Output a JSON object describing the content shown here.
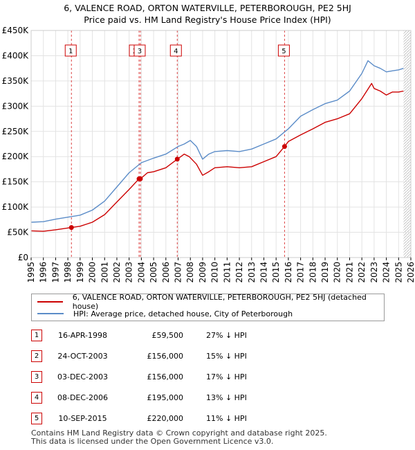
{
  "title_line1": "6, VALENCE ROAD, ORTON WATERVILLE, PETERBOROUGH, PE2 5HJ",
  "title_line2": "Price paid vs. HM Land Registry's House Price Index (HPI)",
  "chart_data": {
    "type": "line",
    "title": "6, VALENCE ROAD, ORTON WATERVILLE, PETERBOROUGH, PE2 5HJ — Price paid vs. HM Land Registry's House Price Index (HPI)",
    "xlim": [
      1995,
      2026
    ],
    "ylim": [
      0,
      450000
    ],
    "y_ticks": [
      0,
      50000,
      100000,
      150000,
      200000,
      250000,
      300000,
      350000,
      400000,
      450000
    ],
    "y_tick_labels": [
      "£0",
      "£50K",
      "£100K",
      "£150K",
      "£200K",
      "£250K",
      "£300K",
      "£350K",
      "£400K",
      "£450K"
    ],
    "x_ticks": [
      1995,
      1996,
      1997,
      1998,
      1999,
      2000,
      2001,
      2002,
      2003,
      2004,
      2005,
      2006,
      2007,
      2008,
      2009,
      2010,
      2011,
      2012,
      2013,
      2014,
      2015,
      2016,
      2017,
      2018,
      2019,
      2020,
      2021,
      2022,
      2023,
      2024,
      2025,
      2026
    ],
    "series": [
      {
        "name": "6, VALENCE ROAD, ORTON WATERVILLE, PETERBOROUGH, PE2 5HJ (detached house)",
        "color": "#cc0000",
        "x": [
          1995,
          1996,
          1997,
          1998.29,
          1999,
          2000,
          2001,
          2002,
          2003,
          2003.81,
          2003.92,
          2004.5,
          2005,
          2006,
          2006.93,
          2007.5,
          2007.9,
          2008.5,
          2009,
          2009.5,
          2010,
          2011,
          2012,
          2013,
          2014,
          2015,
          2015.69,
          2016,
          2017,
          2018,
          2019,
          2020,
          2021,
          2022,
          2022.8,
          2023,
          2023.5,
          2024,
          2024.5,
          2025,
          2025.4
        ],
        "values": [
          53000,
          52000,
          55000,
          59500,
          62000,
          70000,
          85000,
          110000,
          135000,
          156000,
          156000,
          168000,
          170000,
          178000,
          195000,
          205000,
          200000,
          185000,
          163000,
          170000,
          178000,
          180000,
          178000,
          180000,
          190000,
          200000,
          220000,
          230000,
          243000,
          255000,
          268000,
          275000,
          285000,
          315000,
          345000,
          335000,
          330000,
          322000,
          328000,
          328000,
          330000
        ]
      },
      {
        "name": "HPI: Average price, detached house, City of Peterborough",
        "color": "#5b8cc8",
        "x": [
          1995,
          1996,
          1997,
          1998,
          1999,
          2000,
          2001,
          2002,
          2003,
          2004,
          2005,
          2006,
          2007,
          2007.5,
          2008,
          2008.5,
          2009,
          2009.5,
          2010,
          2011,
          2012,
          2013,
          2014,
          2015,
          2016,
          2017,
          2018,
          2019,
          2020,
          2021,
          2022,
          2022.5,
          2023,
          2023.5,
          2024,
          2024.5,
          2025,
          2025.4
        ],
        "values": [
          70000,
          71000,
          76000,
          80000,
          84000,
          94000,
          112000,
          140000,
          168000,
          188000,
          197000,
          205000,
          220000,
          225000,
          232000,
          220000,
          195000,
          205000,
          210000,
          212000,
          210000,
          215000,
          225000,
          235000,
          255000,
          280000,
          293000,
          305000,
          312000,
          330000,
          365000,
          390000,
          380000,
          375000,
          368000,
          370000,
          372000,
          375000
        ]
      }
    ],
    "sales": [
      {
        "id": "1",
        "x": 1998.29,
        "value": 59500
      },
      {
        "id": "2",
        "x": 2003.81,
        "value": 156000
      },
      {
        "id": "3",
        "x": 2003.92,
        "value": 156000
      },
      {
        "id": "4",
        "x": 2006.93,
        "value": 195000
      },
      {
        "id": "5",
        "x": 2015.69,
        "value": 220000
      }
    ],
    "forecast_from": 2025.4
  },
  "legend": {
    "property": "6, VALENCE ROAD, ORTON WATERVILLE, PETERBOROUGH, PE2 5HJ (detached house)",
    "hpi": "HPI: Average price, detached house, City of Peterborough"
  },
  "transactions": [
    {
      "num": "1",
      "date": "16-APR-1998",
      "price": "£59,500",
      "hpi": "27% ↓ HPI"
    },
    {
      "num": "2",
      "date": "24-OCT-2003",
      "price": "£156,000",
      "hpi": "15% ↓ HPI"
    },
    {
      "num": "3",
      "date": "03-DEC-2003",
      "price": "£156,000",
      "hpi": "17% ↓ HPI"
    },
    {
      "num": "4",
      "date": "08-DEC-2006",
      "price": "£195,000",
      "hpi": "13% ↓ HPI"
    },
    {
      "num": "5",
      "date": "10-SEP-2015",
      "price": "£220,000",
      "hpi": "11% ↓ HPI"
    }
  ],
  "footer_line1": "Contains HM Land Registry data © Crown copyright and database right 2025.",
  "footer_line2": "This data is licensed under the Open Government Licence v3.0."
}
